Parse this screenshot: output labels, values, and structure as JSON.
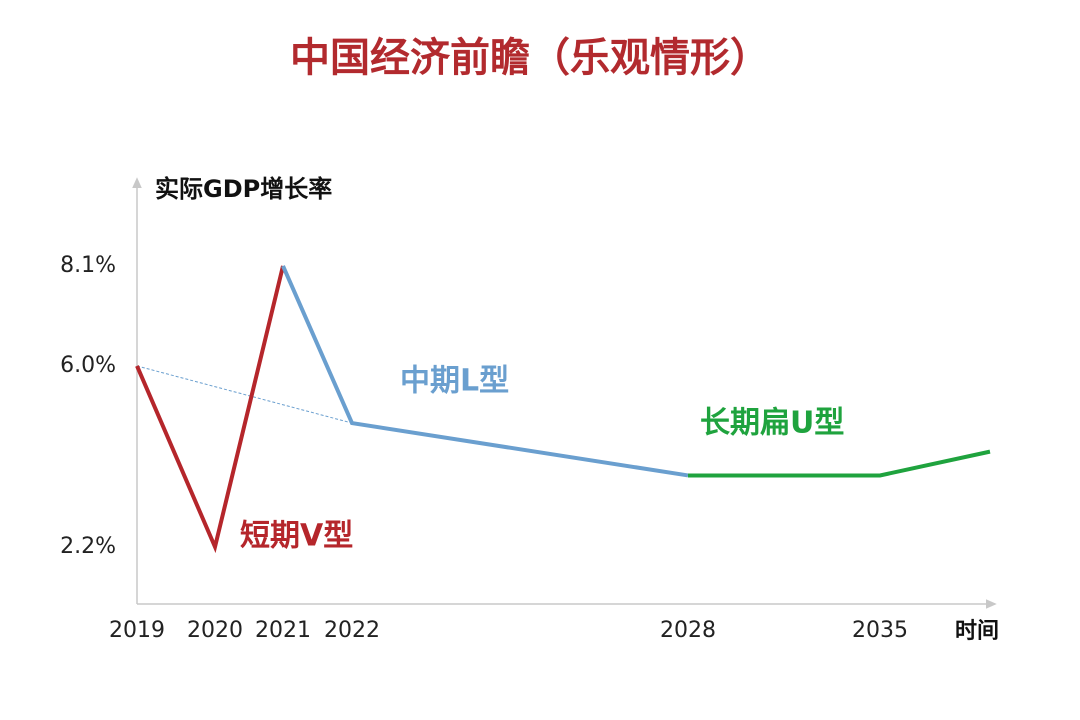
{
  "chart_data": {
    "type": "line",
    "title": "中国经济前瞻（乐观情形）",
    "y_label": "实际GDP增长率",
    "x_label": "时间",
    "categories": [
      "2019",
      "2020",
      "2021",
      "2022",
      "2028",
      "2035",
      null
    ],
    "ylim": [
      1,
      9.8
    ],
    "yticks": [
      {
        "value": 2.2,
        "label": "2.2%"
      },
      {
        "value": 6.0,
        "label": "6.0%"
      },
      {
        "value": 8.1,
        "label": "8.1%"
      }
    ],
    "grid": false,
    "series": [
      {
        "name": "短期V型",
        "color": "#b5262b",
        "values": [
          6.0,
          2.2,
          8.1,
          null,
          null,
          null,
          null
        ]
      },
      {
        "name": "中期L型",
        "color": "#6a9fcf",
        "values": [
          null,
          null,
          8.1,
          4.8,
          3.7,
          null,
          null
        ]
      },
      {
        "name": "长期扁U型",
        "color": "#1fa33e",
        "values": [
          null,
          null,
          null,
          null,
          3.7,
          3.7,
          4.2
        ]
      }
    ],
    "trend": {
      "color": "#6a9fcf",
      "dashed": true,
      "x": [
        "2019",
        "2022"
      ],
      "values": [
        6.0,
        4.8
      ]
    }
  }
}
